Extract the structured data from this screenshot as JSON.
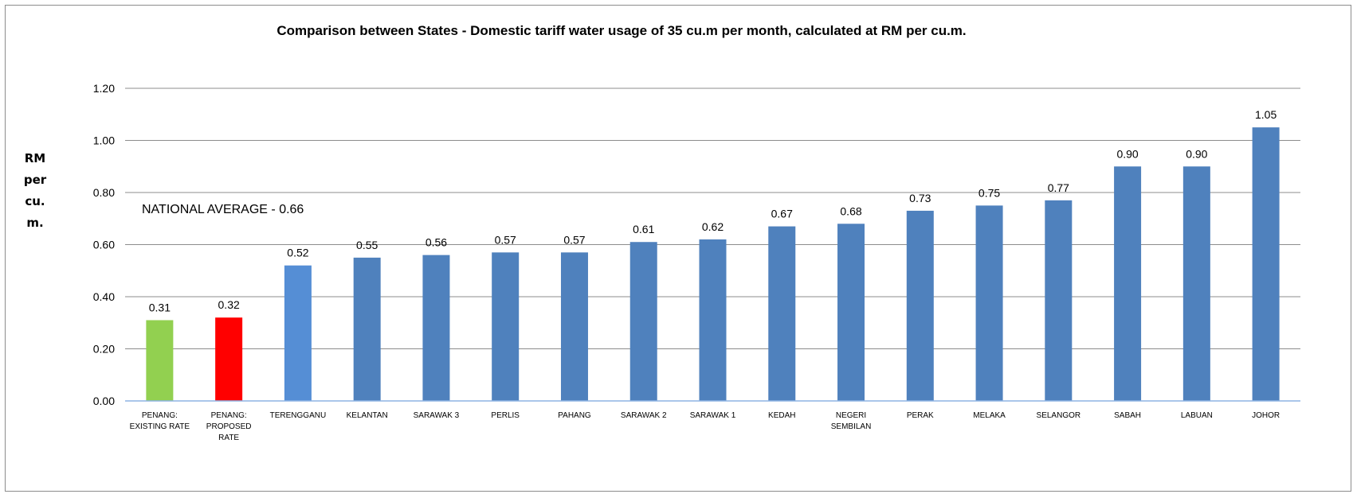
{
  "chart_data": {
    "type": "bar",
    "title": "Comparison between States - Domestic tariff water usage of 35 cu.m per month, calculated at RM per cu.m.",
    "ylabel_lines": [
      "RM",
      "per",
      "cu.",
      "m."
    ],
    "xlabel": "",
    "ylim": [
      0,
      1.2
    ],
    "yticks": [
      "0.00",
      "0.20",
      "0.40",
      "0.60",
      "0.80",
      "1.00",
      "1.20"
    ],
    "grid": true,
    "annotation": "NATIONAL AVERAGE - 0.66",
    "categories": [
      [
        "PENANG:",
        "EXISTING RATE"
      ],
      [
        "PENANG:",
        "PROPOSED",
        "RATE"
      ],
      [
        "TERENGGANU"
      ],
      [
        "KELANTAN"
      ],
      [
        "SARAWAK 3"
      ],
      [
        "PERLIS"
      ],
      [
        "PAHANG"
      ],
      [
        "SARAWAK 2"
      ],
      [
        "SARAWAK 1"
      ],
      [
        "KEDAH"
      ],
      [
        "NEGERI",
        "SEMBILAN"
      ],
      [
        "PERAK"
      ],
      [
        "MELAKA"
      ],
      [
        "SELANGOR"
      ],
      [
        "SABAH"
      ],
      [
        "LABUAN"
      ],
      [
        "JOHOR"
      ]
    ],
    "values": [
      0.31,
      0.32,
      0.52,
      0.55,
      0.56,
      0.57,
      0.57,
      0.61,
      0.62,
      0.67,
      0.68,
      0.73,
      0.75,
      0.77,
      0.9,
      0.9,
      1.05
    ],
    "value_labels": [
      "0.31",
      "0.32",
      "0.52",
      "0.55",
      "0.56",
      "0.57",
      "0.57",
      "0.61",
      "0.62",
      "0.67",
      "0.68",
      "0.73",
      "0.75",
      "0.77",
      "0.90",
      "0.90",
      "1.05"
    ],
    "colors": [
      "#92d050",
      "#ff0000",
      "#558ed5",
      "#4f81bd",
      "#4f81bd",
      "#4f81bd",
      "#4f81bd",
      "#4f81bd",
      "#4f81bd",
      "#4f81bd",
      "#4f81bd",
      "#4f81bd",
      "#4f81bd",
      "#4f81bd",
      "#4f81bd",
      "#4f81bd",
      "#4f81bd"
    ],
    "gridline_color": "#8c8c8c",
    "axis_color": "#8eb4e3"
  }
}
